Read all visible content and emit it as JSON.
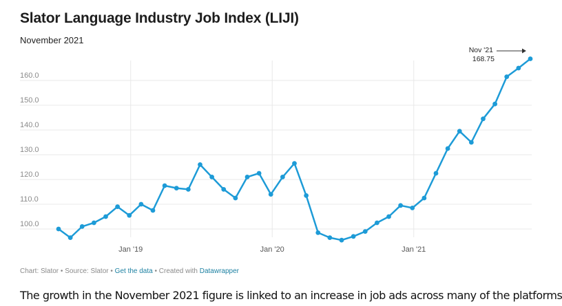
{
  "title": "Slator Language Industry Job Index (LIJI)",
  "subtitle": "November 2021",
  "footer": {
    "chart_label": "Chart: Slator",
    "source_label": "Source: Slator",
    "data_link": "Get the data",
    "created_label": "Created with",
    "tool_link": "Datawrapper",
    "separator": "•"
  },
  "body_text": "The growth in the November 2021 figure is linked to an increase in job ads across many of the platforms",
  "colors": {
    "line": "#1d9bd7",
    "grid": "#e8e8e8",
    "link": "#1d81a2"
  },
  "chart_data": {
    "type": "line",
    "title": "Slator Language Industry Job Index (LIJI)",
    "subtitle": "November 2021",
    "x": [
      "2018-07",
      "2018-08",
      "2018-09",
      "2018-10",
      "2018-11",
      "2018-12",
      "2019-01",
      "2019-02",
      "2019-03",
      "2019-04",
      "2019-05",
      "2019-06",
      "2019-07",
      "2019-08",
      "2019-09",
      "2019-10",
      "2019-11",
      "2019-12",
      "2020-01",
      "2020-02",
      "2020-03",
      "2020-04",
      "2020-05",
      "2020-06",
      "2020-07",
      "2020-08",
      "2020-09",
      "2020-10",
      "2020-11",
      "2020-12",
      "2021-01",
      "2021-02",
      "2021-03",
      "2021-04",
      "2021-05",
      "2021-06",
      "2021-07",
      "2021-08",
      "2021-09",
      "2021-10",
      "2021-11"
    ],
    "series": [
      {
        "values": [
          100.0,
          96.5,
          101.0,
          102.5,
          105.0,
          109.0,
          105.5,
          110.0,
          107.5,
          117.5,
          116.5,
          116.0,
          126.0,
          121.0,
          116.0,
          112.5,
          121.0,
          122.5,
          114.0,
          121.0,
          126.5,
          113.5,
          98.5,
          96.5,
          95.5,
          97.0,
          99.0,
          102.5,
          105.0,
          109.5,
          108.5,
          112.5,
          122.5,
          132.5,
          139.5,
          135.0,
          144.5,
          150.5,
          161.5,
          165.0,
          168.75
        ]
      }
    ],
    "x_ticks": [
      "Jan '19",
      "Jan '20",
      "Jan '21"
    ],
    "y_ticks": [
      "100.0",
      "110.0",
      "120.0",
      "130.0",
      "140.0",
      "150.0",
      "160.0"
    ],
    "ylim": [
      93,
      172
    ],
    "grid": true,
    "annotation": {
      "label": "Nov '21",
      "value": "168.75"
    }
  }
}
